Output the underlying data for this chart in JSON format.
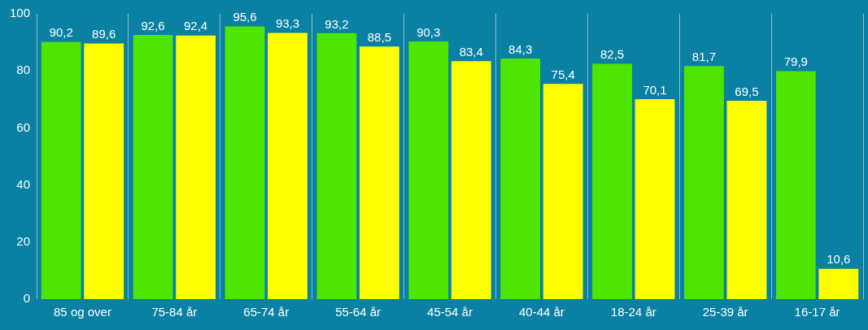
{
  "chart_data": {
    "type": "bar",
    "categories": [
      "85 og over",
      "75-84 år",
      "65-74 år",
      "55-64 år",
      "45-54 år",
      "40-44 år",
      "18-24 år",
      "25-39 år",
      "16-17 år"
    ],
    "series": [
      {
        "color": "#4ee600",
        "values": [
          90.2,
          92.6,
          95.6,
          93.2,
          90.3,
          84.3,
          82.5,
          81.7,
          79.9
        ],
        "value_labels": [
          "90,2",
          "92,6",
          "95,6",
          "93,2",
          "90,3",
          "84,3",
          "82,5",
          "81,7",
          "79,9"
        ]
      },
      {
        "color": "#ffff00",
        "values": [
          89.6,
          92.4,
          93.3,
          88.5,
          83.4,
          75.4,
          70.1,
          69.5,
          10.6
        ],
        "value_labels": [
          "89,6",
          "92,4",
          "93,3",
          "88,5",
          "83,4",
          "75,4",
          "70,1",
          "69,5",
          "10,6"
        ]
      }
    ],
    "ylim": [
      0,
      100
    ],
    "yticks": [
      0,
      20,
      40,
      60,
      80,
      100
    ],
    "grid": "x",
    "legend": false
  }
}
